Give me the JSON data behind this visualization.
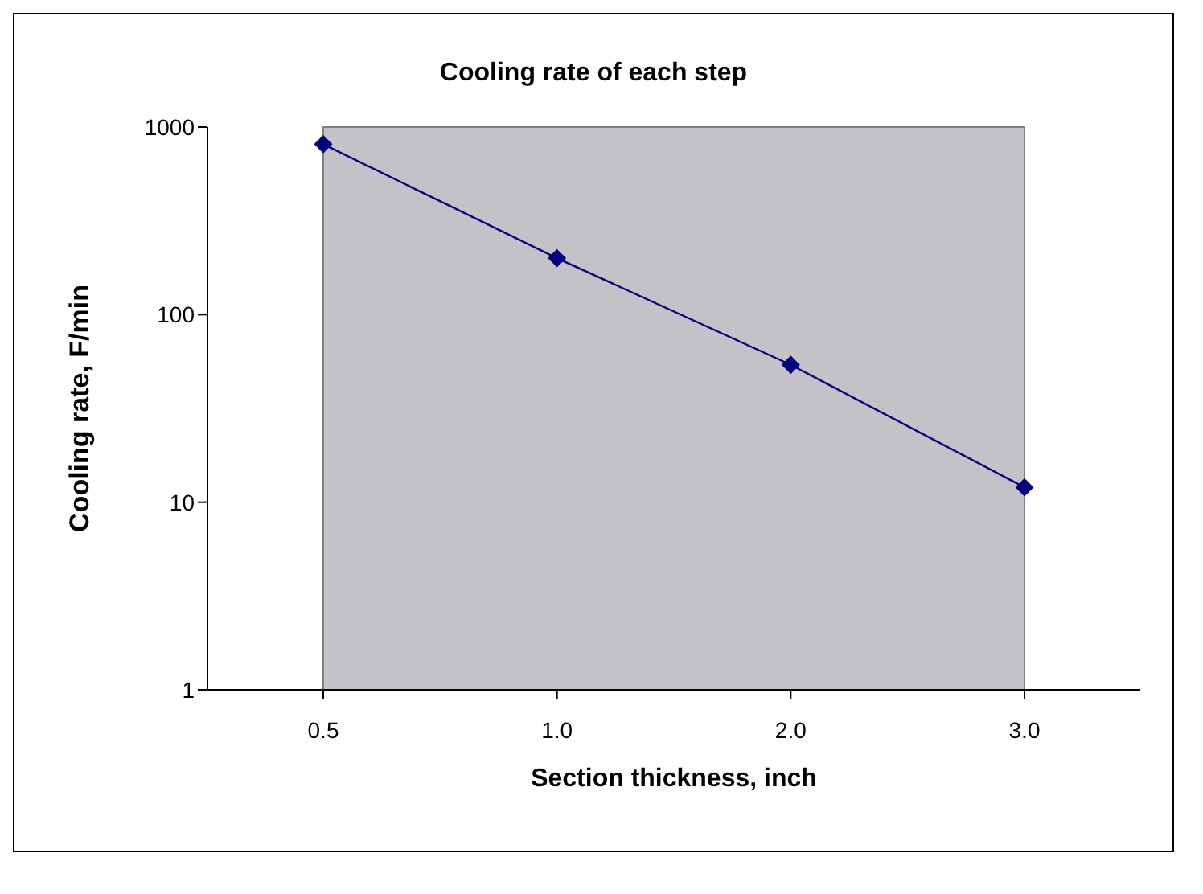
{
  "chart_data": {
    "type": "line",
    "title": "Cooling rate of each step",
    "xlabel": "Section thickness, inch",
    "ylabel": "Cooling rate, F/min",
    "categories": [
      "0.5",
      "1.0",
      "2.0",
      "3.0"
    ],
    "series": [
      {
        "color": "#000080",
        "values": [
          810,
          200,
          54,
          12
        ]
      }
    ],
    "log": "y",
    "ylim": [
      1,
      1000
    ],
    "yticks": [
      1,
      10,
      100,
      1000
    ],
    "marker": "diamond",
    "line_style": "solid"
  }
}
